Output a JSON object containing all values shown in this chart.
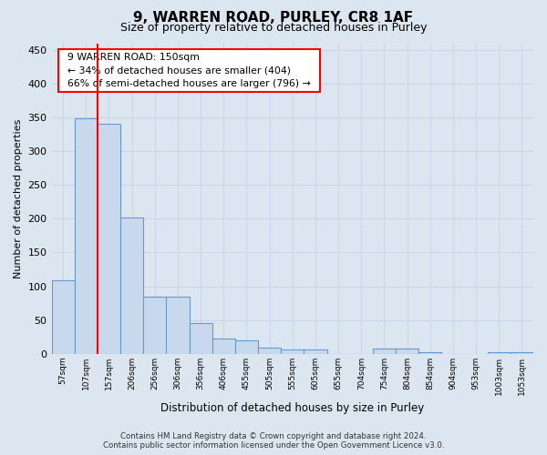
{
  "title": "9, WARREN ROAD, PURLEY, CR8 1AF",
  "subtitle": "Size of property relative to detached houses in Purley",
  "xlabel": "Distribution of detached houses by size in Purley",
  "ylabel": "Number of detached properties",
  "footer_line1": "Contains HM Land Registry data © Crown copyright and database right 2024.",
  "footer_line2": "Contains public sector information licensed under the Open Government Licence v3.0.",
  "annotation_line1": "9 WARREN ROAD: 150sqm",
  "annotation_line2": "← 34% of detached houses are smaller (404)",
  "annotation_line3": "66% of semi-detached houses are larger (796) →",
  "bar_labels": [
    "57sqm",
    "107sqm",
    "157sqm",
    "206sqm",
    "256sqm",
    "306sqm",
    "356sqm",
    "406sqm",
    "455sqm",
    "505sqm",
    "555sqm",
    "605sqm",
    "655sqm",
    "704sqm",
    "754sqm",
    "804sqm",
    "854sqm",
    "904sqm",
    "953sqm",
    "1003sqm",
    "1053sqm"
  ],
  "bar_values": [
    109,
    349,
    341,
    202,
    84,
    84,
    46,
    22,
    20,
    9,
    7,
    7,
    0,
    0,
    8,
    8,
    3,
    0,
    0,
    3,
    3
  ],
  "bar_color": "#c9d9ed",
  "bar_edge_color": "#6699cc",
  "vline_x": 1.5,
  "vline_color": "red",
  "ylim": [
    0,
    460
  ],
  "yticks": [
    0,
    50,
    100,
    150,
    200,
    250,
    300,
    350,
    400,
    450
  ],
  "grid_color": "#c8d4e8",
  "bg_color": "#dce6f0",
  "plot_bg_color": "#dce6f0",
  "title_fontsize": 11,
  "subtitle_fontsize": 9
}
